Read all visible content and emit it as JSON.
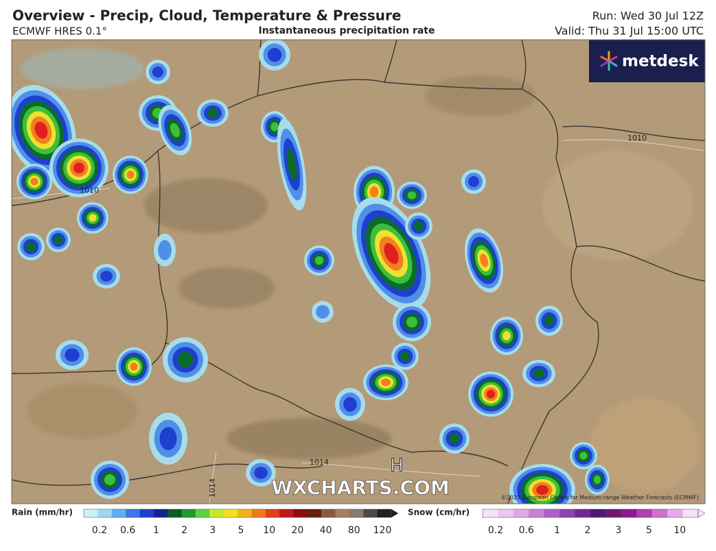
{
  "header": {
    "title": "Overview - Precip, Cloud, Temperature & Pressure",
    "model": "ECMWF HRES 0.1°",
    "layer": "Instantaneous precipitation rate",
    "run": "Run: Wed 30 Jul 12Z",
    "valid": "Valid: Thu 31 Jul 15:00 UTC"
  },
  "map": {
    "logo": "metdesk",
    "watermark": "WXCHARTS.COM",
    "copyright": "©2025 European Centre for Medium-range Weather Forecasts (ECMWF)",
    "isobar_labels": [
      "1010",
      "1010",
      "1014",
      "1014"
    ],
    "pressure_centre": "H"
  },
  "legend": {
    "rain": {
      "title": "Rain (mm/hr)",
      "ticks": [
        "0.2",
        "0.6",
        "1",
        "2",
        "3",
        "5",
        "10",
        "20",
        "40",
        "80",
        "120"
      ],
      "colors": [
        "#cdeff6",
        "#9fd9ee",
        "#5fb0f0",
        "#3a78e8",
        "#1f3fd0",
        "#12238f",
        "#0b5e1e",
        "#1f9a2a",
        "#5fd040",
        "#c8e830",
        "#f5e020",
        "#f5b020",
        "#f07a18",
        "#e0401a",
        "#c01818",
        "#8a1010",
        "#6a2010",
        "#8a5a3a",
        "#a88060",
        "#8a7a70",
        "#504848",
        "#202020"
      ]
    },
    "snow": {
      "title": "Snow (cm/hr)",
      "ticks": [
        "0.2",
        "0.6",
        "1",
        "2",
        "3",
        "5",
        "10"
      ],
      "colors": [
        "#f4e4f4",
        "#e8c8ec",
        "#dca8e4",
        "#c880d8",
        "#b060c8",
        "#9040b0",
        "#702890",
        "#501870",
        "#701870",
        "#901890",
        "#b040b0",
        "#d070d0",
        "#e8a8e8",
        "#f8e0f8"
      ]
    }
  }
}
